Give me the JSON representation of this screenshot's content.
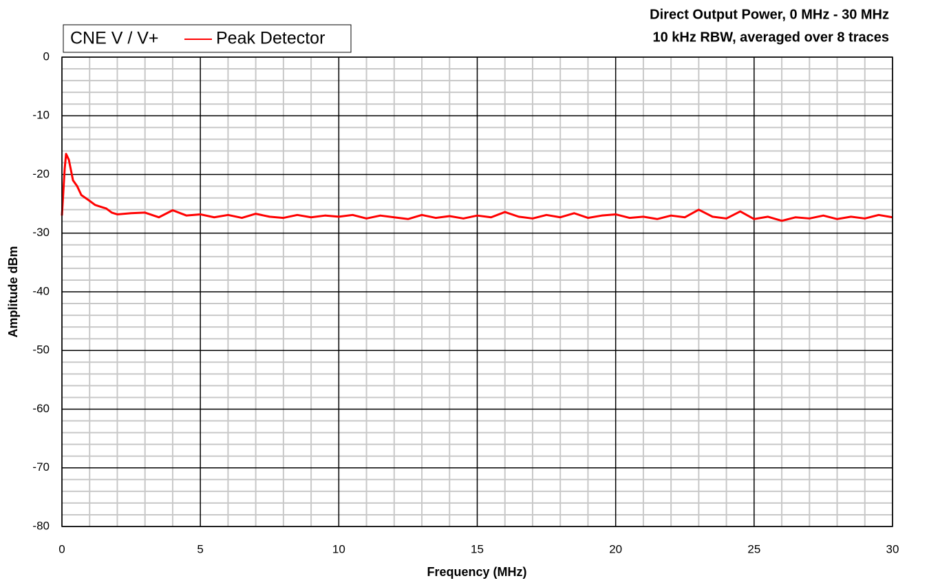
{
  "chart_data": {
    "type": "line",
    "title": "Direct Output Power, 0 MHz - 30 MHz",
    "subtitle": "10 kHz RBW, averaged over 8 traces",
    "x_label": "Frequency (MHz)",
    "y_label": "Amplitude dBm",
    "legend_title": "CNE V / V+",
    "legend": "top-left",
    "grid": true,
    "xlim": [
      0,
      30
    ],
    "xticks": [
      0,
      5,
      10,
      15,
      20,
      25,
      30
    ],
    "ylim": [
      -80,
      0
    ],
    "yticks": [
      0,
      -10,
      -20,
      -30,
      -40,
      -50,
      -60,
      -70,
      -80
    ],
    "xminor": [
      1,
      2,
      3,
      4,
      6,
      7,
      8,
      9,
      11,
      12,
      13,
      14,
      16,
      17,
      18,
      19,
      21,
      22,
      23,
      24,
      26,
      27,
      28,
      29
    ],
    "yminor": [
      -2,
      -4,
      -6,
      -8,
      -12,
      -14,
      -16,
      -18,
      -22,
      -24,
      -26,
      -28,
      -32,
      -34,
      -36,
      -38,
      -42,
      -44,
      -46,
      -48,
      -52,
      -54,
      -56,
      -58,
      -62,
      -64,
      -66,
      -68,
      -72,
      -74,
      -76,
      -78
    ],
    "x": [
      0,
      0.1,
      0.15,
      0.25,
      0.4,
      0.55,
      0.7,
      0.85,
      1.0,
      1.2,
      1.4,
      1.6,
      1.8,
      2.0,
      2.5,
      3,
      3.5,
      4,
      4.5,
      5,
      5.5,
      6,
      6.5,
      7,
      7.5,
      8,
      8.5,
      9,
      9.5,
      10,
      10.5,
      11,
      11.5,
      12,
      12.5,
      13,
      13.5,
      14,
      14.5,
      15,
      15.5,
      16,
      16.5,
      17,
      17.5,
      18,
      18.5,
      19,
      19.5,
      20,
      20.5,
      21,
      21.5,
      22,
      22.5,
      23,
      23.5,
      24,
      24.5,
      25,
      25.5,
      26,
      26.5,
      27,
      27.5,
      28,
      28.5,
      29,
      29.5,
      30
    ],
    "series": [
      {
        "name": "Peak Detector",
        "color": "#ff0000",
        "values": [
          -27,
          -19,
          -16.5,
          -17.5,
          -21,
          -22,
          -23.5,
          -24,
          -24.5,
          -25.2,
          -25.5,
          -25.8,
          -26.5,
          -26.8,
          -26.6,
          -26.5,
          -27.3,
          -26.1,
          -27,
          -26.8,
          -27.3,
          -26.9,
          -27.4,
          -26.7,
          -27.2,
          -27.4,
          -26.9,
          -27.3,
          -27,
          -27.2,
          -26.9,
          -27.5,
          -27,
          -27.3,
          -27.6,
          -26.9,
          -27.4,
          -27.1,
          -27.5,
          -27,
          -27.3,
          -26.4,
          -27.2,
          -27.5,
          -26.9,
          -27.3,
          -26.6,
          -27.4,
          -27,
          -26.8,
          -27.4,
          -27.2,
          -27.6,
          -27,
          -27.3,
          -26,
          -27.2,
          -27.5,
          -26.3,
          -27.6,
          -27.2,
          -27.9,
          -27.3,
          -27.5,
          -27,
          -27.6,
          -27.2,
          -27.5,
          -26.9,
          -27.3
        ]
      }
    ]
  }
}
